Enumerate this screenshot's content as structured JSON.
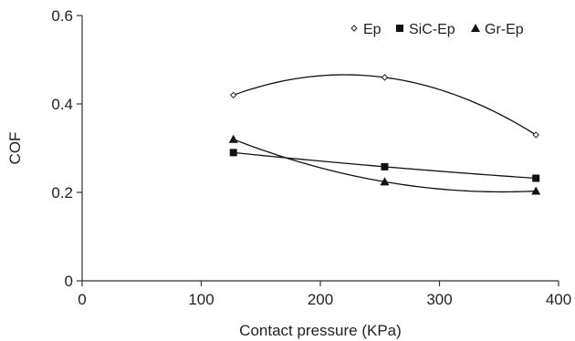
{
  "chart_data": {
    "type": "scatter",
    "xlabel": "Contact pressure (KPa)",
    "ylabel": "COF",
    "xlim": [
      0,
      400
    ],
    "ylim": [
      0,
      0.6
    ],
    "x_ticks": [
      0,
      100,
      200,
      300,
      400
    ],
    "y_ticks": [
      0,
      0.2,
      0.4,
      0.6
    ],
    "x_tick_labels": [
      "0",
      "100",
      "200",
      "300",
      "400"
    ],
    "y_tick_labels": [
      "0",
      "0.2",
      "0.4",
      "0.6"
    ],
    "grid": false,
    "legend_position": "top-right",
    "trendline": "polynomial order 2",
    "series": [
      {
        "name": "Ep",
        "marker": "diamond-open",
        "x": [
          127,
          254,
          381
        ],
        "y": [
          0.42,
          0.46,
          0.33
        ]
      },
      {
        "name": "SiC-Ep",
        "marker": "square",
        "x": [
          127,
          254,
          381
        ],
        "y": [
          0.29,
          0.258,
          0.232
        ]
      },
      {
        "name": "Gr-Ep",
        "marker": "triangle",
        "x": [
          127,
          254,
          381
        ],
        "y": [
          0.32,
          0.224,
          0.203
        ]
      }
    ]
  }
}
